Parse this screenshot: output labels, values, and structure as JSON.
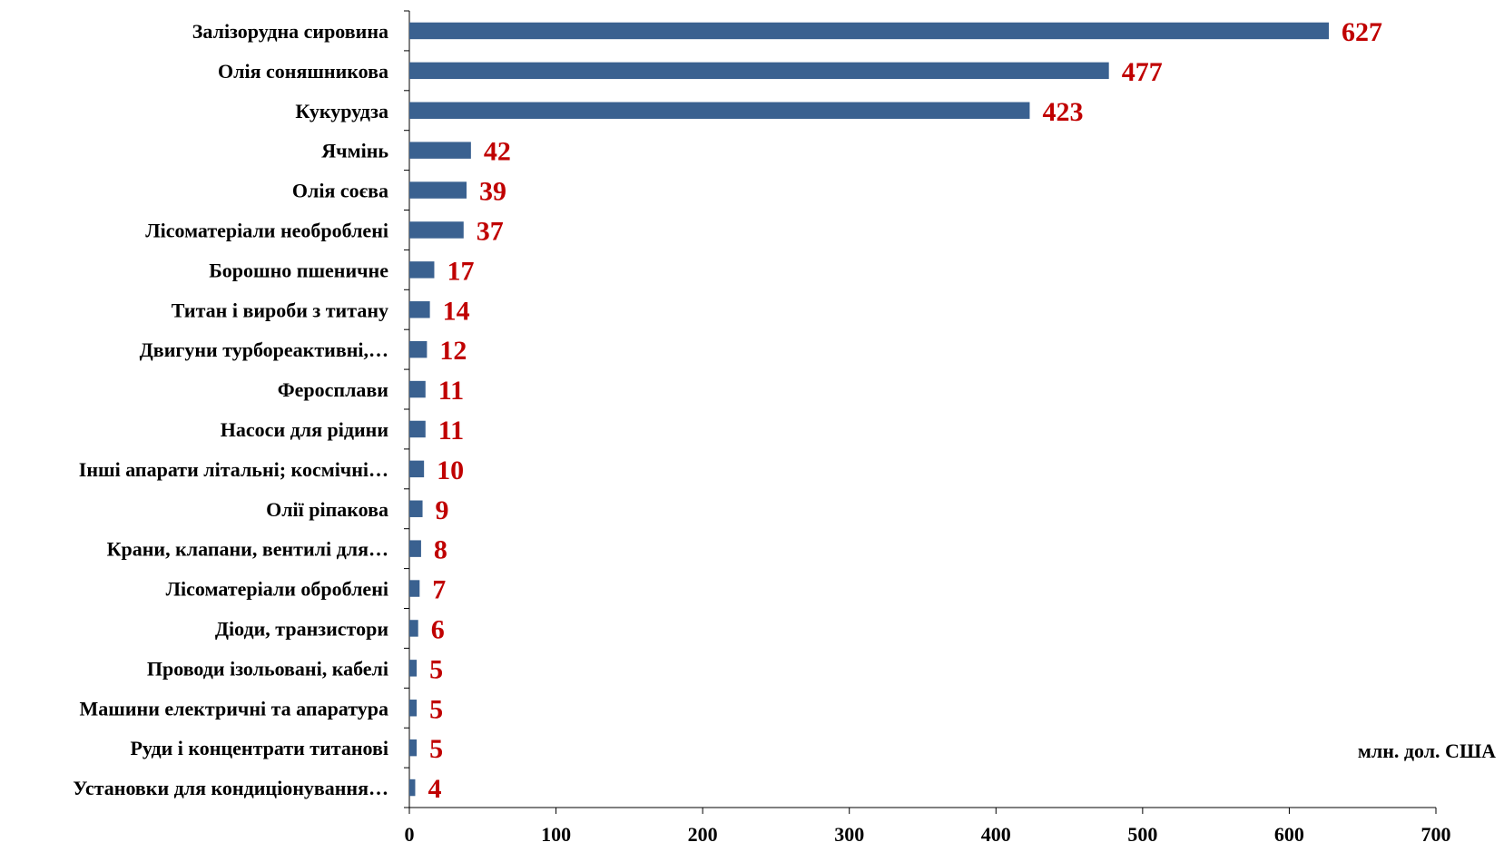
{
  "colors": {
    "bar": "#3a6190",
    "value_label": "#c00000",
    "axis": "#000000"
  },
  "chart_data": {
    "type": "bar",
    "orientation": "horizontal",
    "unit_label": "млн. дол. США",
    "categories": [
      "Залізорудна сировина",
      "Олія соняшникова",
      "Кукурудза",
      "Ячмінь",
      "Олія соєва",
      "Лісоматеріали необроблені",
      "Борошно пшеничне",
      "Титан і вироби з титану",
      "Двигуни турбореактивні,…",
      "Феросплави",
      "Насоси для рідини",
      "Інші апарати літальні; космічні…",
      "Олії ріпакова",
      "Крани, клапани, вентилі для…",
      "Лісоматеріали оброблені",
      "Діоди, транзистори",
      "Проводи ізольовані, кабелі",
      "Машини електричні та апаратура",
      "Руди і концентрати титанові",
      "Установки для кондиціонування…"
    ],
    "values": [
      627,
      477,
      423,
      42,
      39,
      37,
      17,
      14,
      12,
      11,
      11,
      10,
      9,
      8,
      7,
      6,
      5,
      5,
      5,
      4
    ],
    "xlim": [
      0,
      700
    ],
    "xticks": [
      0,
      100,
      200,
      300,
      400,
      500,
      600,
      700
    ],
    "grid": false,
    "legend": "none"
  }
}
